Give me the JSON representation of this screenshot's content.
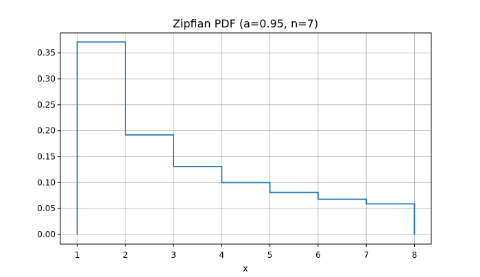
{
  "chart_data": {
    "type": "line",
    "title": "Zipfian PDF (a=0.95, n=7)",
    "xlabel": "x",
    "ylabel": "",
    "xlim": [
      0.65,
      8.35
    ],
    "ylim": [
      -0.0185,
      0.3885
    ],
    "x_ticks": [
      1,
      2,
      3,
      4,
      5,
      6,
      7,
      8
    ],
    "x_tick_labels": [
      "1",
      "2",
      "3",
      "4",
      "5",
      "6",
      "7",
      "8"
    ],
    "y_ticks": [
      0.0,
      0.05,
      0.1,
      0.15,
      0.2,
      0.25,
      0.3,
      0.35
    ],
    "y_tick_labels": [
      "0.00",
      "0.05",
      "0.10",
      "0.15",
      "0.20",
      "0.25",
      "0.30",
      "0.35"
    ],
    "grid": true,
    "step": "post",
    "series": [
      {
        "x": [
          1,
          2,
          3,
          4,
          5,
          6,
          7,
          8
        ],
        "y": [
          0.371,
          0.192,
          0.131,
          0.1,
          0.081,
          0.068,
          0.059,
          0.0
        ],
        "start_y": 0.0,
        "color": "#1f77b4"
      }
    ]
  }
}
